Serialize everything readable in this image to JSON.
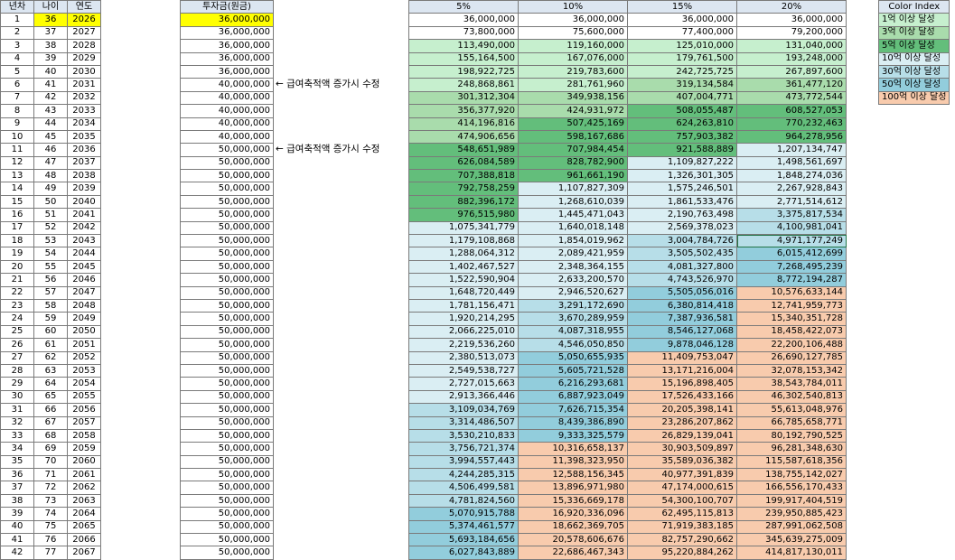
{
  "headers": {
    "year_no": "년차",
    "age": "나이",
    "year": "연도",
    "investment": "투자금(원금)",
    "rates": [
      "5%",
      "10%",
      "15%",
      "20%"
    ]
  },
  "rows": [
    {
      "n": "1",
      "age": "36",
      "year": "2026",
      "inv": "36,000,000",
      "v": [
        "36,000,000",
        "36,000,000",
        "36,000,000",
        "36,000,000"
      ]
    },
    {
      "n": "2",
      "age": "37",
      "year": "2027",
      "inv": "36,000,000",
      "v": [
        "73,800,000",
        "75,600,000",
        "77,400,000",
        "79,200,000"
      ]
    },
    {
      "n": "3",
      "age": "38",
      "year": "2028",
      "inv": "36,000,000",
      "v": [
        "113,490,000",
        "119,160,000",
        "125,010,000",
        "131,040,000"
      ]
    },
    {
      "n": "4",
      "age": "39",
      "year": "2029",
      "inv": "36,000,000",
      "v": [
        "155,164,500",
        "167,076,000",
        "179,761,500",
        "193,248,000"
      ]
    },
    {
      "n": "5",
      "age": "40",
      "year": "2030",
      "inv": "36,000,000",
      "v": [
        "198,922,725",
        "219,783,600",
        "242,725,725",
        "267,897,600"
      ]
    },
    {
      "n": "6",
      "age": "41",
      "year": "2031",
      "inv": "40,000,000",
      "v": [
        "248,868,861",
        "281,761,960",
        "319,134,584",
        "361,477,120"
      ]
    },
    {
      "n": "7",
      "age": "42",
      "year": "2032",
      "inv": "40,000,000",
      "v": [
        "301,312,304",
        "349,938,156",
        "407,004,771",
        "473,772,544"
      ]
    },
    {
      "n": "8",
      "age": "43",
      "year": "2033",
      "inv": "40,000,000",
      "v": [
        "356,377,920",
        "424,931,972",
        "508,055,487",
        "608,527,053"
      ]
    },
    {
      "n": "9",
      "age": "44",
      "year": "2034",
      "inv": "40,000,000",
      "v": [
        "414,196,816",
        "507,425,169",
        "624,263,810",
        "770,232,463"
      ]
    },
    {
      "n": "10",
      "age": "45",
      "year": "2035",
      "inv": "40,000,000",
      "v": [
        "474,906,656",
        "598,167,686",
        "757,903,382",
        "964,278,956"
      ]
    },
    {
      "n": "11",
      "age": "46",
      "year": "2036",
      "inv": "50,000,000",
      "v": [
        "548,651,989",
        "707,984,454",
        "921,588,889",
        "1,207,134,747"
      ]
    },
    {
      "n": "12",
      "age": "47",
      "year": "2037",
      "inv": "50,000,000",
      "v": [
        "626,084,589",
        "828,782,900",
        "1,109,827,222",
        "1,498,561,697"
      ]
    },
    {
      "n": "13",
      "age": "48",
      "year": "2038",
      "inv": "50,000,000",
      "v": [
        "707,388,818",
        "961,661,190",
        "1,326,301,305",
        "1,848,274,036"
      ]
    },
    {
      "n": "14",
      "age": "49",
      "year": "2039",
      "inv": "50,000,000",
      "v": [
        "792,758,259",
        "1,107,827,309",
        "1,575,246,501",
        "2,267,928,843"
      ]
    },
    {
      "n": "15",
      "age": "50",
      "year": "2040",
      "inv": "50,000,000",
      "v": [
        "882,396,172",
        "1,268,610,039",
        "1,861,533,476",
        "2,771,514,612"
      ]
    },
    {
      "n": "16",
      "age": "51",
      "year": "2041",
      "inv": "50,000,000",
      "v": [
        "976,515,980",
        "1,445,471,043",
        "2,190,763,498",
        "3,375,817,534"
      ]
    },
    {
      "n": "17",
      "age": "52",
      "year": "2042",
      "inv": "50,000,000",
      "v": [
        "1,075,341,779",
        "1,640,018,148",
        "2,569,378,023",
        "4,100,981,041"
      ]
    },
    {
      "n": "18",
      "age": "53",
      "year": "2043",
      "inv": "50,000,000",
      "v": [
        "1,179,108,868",
        "1,854,019,962",
        "3,004,784,726",
        "4,971,177,249"
      ]
    },
    {
      "n": "19",
      "age": "54",
      "year": "2044",
      "inv": "50,000,000",
      "v": [
        "1,288,064,312",
        "2,089,421,959",
        "3,505,502,435",
        "6,015,412,699"
      ]
    },
    {
      "n": "20",
      "age": "55",
      "year": "2045",
      "inv": "50,000,000",
      "v": [
        "1,402,467,527",
        "2,348,364,155",
        "4,081,327,800",
        "7,268,495,239"
      ]
    },
    {
      "n": "21",
      "age": "56",
      "year": "2046",
      "inv": "50,000,000",
      "v": [
        "1,522,590,904",
        "2,633,200,570",
        "4,743,526,970",
        "8,772,194,287"
      ]
    },
    {
      "n": "22",
      "age": "57",
      "year": "2047",
      "inv": "50,000,000",
      "v": [
        "1,648,720,449",
        "2,946,520,627",
        "5,505,056,016",
        "10,576,633,144"
      ]
    },
    {
      "n": "23",
      "age": "58",
      "year": "2048",
      "inv": "50,000,000",
      "v": [
        "1,781,156,471",
        "3,291,172,690",
        "6,380,814,418",
        "12,741,959,773"
      ]
    },
    {
      "n": "24",
      "age": "59",
      "year": "2049",
      "inv": "50,000,000",
      "v": [
        "1,920,214,295",
        "3,670,289,959",
        "7,387,936,581",
        "15,340,351,728"
      ]
    },
    {
      "n": "25",
      "age": "60",
      "year": "2050",
      "inv": "50,000,000",
      "v": [
        "2,066,225,010",
        "4,087,318,955",
        "8,546,127,068",
        "18,458,422,073"
      ]
    },
    {
      "n": "26",
      "age": "61",
      "year": "2051",
      "inv": "50,000,000",
      "v": [
        "2,219,536,260",
        "4,546,050,850",
        "9,878,046,128",
        "22,200,106,488"
      ]
    },
    {
      "n": "27",
      "age": "62",
      "year": "2052",
      "inv": "50,000,000",
      "v": [
        "2,380,513,073",
        "5,050,655,935",
        "11,409,753,047",
        "26,690,127,785"
      ]
    },
    {
      "n": "28",
      "age": "63",
      "year": "2053",
      "inv": "50,000,000",
      "v": [
        "2,549,538,727",
        "5,605,721,528",
        "13,171,216,004",
        "32,078,153,342"
      ]
    },
    {
      "n": "29",
      "age": "64",
      "year": "2054",
      "inv": "50,000,000",
      "v": [
        "2,727,015,663",
        "6,216,293,681",
        "15,196,898,405",
        "38,543,784,011"
      ]
    },
    {
      "n": "30",
      "age": "65",
      "year": "2055",
      "inv": "50,000,000",
      "v": [
        "2,913,366,446",
        "6,887,923,049",
        "17,526,433,166",
        "46,302,540,813"
      ]
    },
    {
      "n": "31",
      "age": "66",
      "year": "2056",
      "inv": "50,000,000",
      "v": [
        "3,109,034,769",
        "7,626,715,354",
        "20,205,398,141",
        "55,613,048,976"
      ]
    },
    {
      "n": "32",
      "age": "67",
      "year": "2057",
      "inv": "50,000,000",
      "v": [
        "3,314,486,507",
        "8,439,386,890",
        "23,286,207,862",
        "66,785,658,771"
      ]
    },
    {
      "n": "33",
      "age": "68",
      "year": "2058",
      "inv": "50,000,000",
      "v": [
        "3,530,210,833",
        "9,333,325,579",
        "26,829,139,041",
        "80,192,790,525"
      ]
    },
    {
      "n": "34",
      "age": "69",
      "year": "2059",
      "inv": "50,000,000",
      "v": [
        "3,756,721,374",
        "10,316,658,137",
        "30,903,509,897",
        "96,281,348,630"
      ]
    },
    {
      "n": "35",
      "age": "70",
      "year": "2060",
      "inv": "50,000,000",
      "v": [
        "3,994,557,443",
        "11,398,323,950",
        "35,589,036,382",
        "115,587,618,356"
      ]
    },
    {
      "n": "36",
      "age": "71",
      "year": "2061",
      "inv": "50,000,000",
      "v": [
        "4,244,285,315",
        "12,588,156,345",
        "40,977,391,839",
        "138,755,142,027"
      ]
    },
    {
      "n": "37",
      "age": "72",
      "year": "2062",
      "inv": "50,000,000",
      "v": [
        "4,506,499,581",
        "13,896,971,980",
        "47,174,000,615",
        "166,556,170,433"
      ]
    },
    {
      "n": "38",
      "age": "73",
      "year": "2063",
      "inv": "50,000,000",
      "v": [
        "4,781,824,560",
        "15,336,669,178",
        "54,300,100,707",
        "199,917,404,519"
      ]
    },
    {
      "n": "39",
      "age": "74",
      "year": "2064",
      "inv": "50,000,000",
      "v": [
        "5,070,915,788",
        "16,920,336,096",
        "62,495,115,813",
        "239,950,885,423"
      ]
    },
    {
      "n": "40",
      "age": "75",
      "year": "2065",
      "inv": "50,000,000",
      "v": [
        "5,374,461,577",
        "18,662,369,705",
        "71,919,383,185",
        "287,991,062,508"
      ]
    },
    {
      "n": "41",
      "age": "76",
      "year": "2066",
      "inv": "50,000,000",
      "v": [
        "5,693,184,656",
        "20,578,606,676",
        "82,757,290,662",
        "345,639,275,009"
      ]
    },
    {
      "n": "42",
      "age": "77",
      "year": "2067",
      "inv": "50,000,000",
      "v": [
        "6,027,843,889",
        "22,686,467,343",
        "95,220,884,262",
        "414,817,130,011"
      ]
    }
  ],
  "notes": {
    "row6": "← 급여축적액 증가시 수정",
    "row11": "← 급여축적액 증가시 수정"
  },
  "legend": {
    "title": "Color Index",
    "items": [
      "1억 이상 달성",
      "3억 이상 달성",
      "5억 이상 달성",
      "10억 이상 달성",
      "30억 이상 달성",
      "50억 이상 달성",
      "100억 이상 달성"
    ]
  },
  "colors": {
    "highlight": "#ffff00",
    "over_100m": "#c6efce",
    "over_300m": "#a9dcac",
    "over_500m": "#63be7b",
    "over_1b": "#daeef3",
    "over_3b": "#b7dee8",
    "over_5b": "#92cddc",
    "over_10b": "#f8cbad",
    "header_fill": "#dce6f1"
  }
}
